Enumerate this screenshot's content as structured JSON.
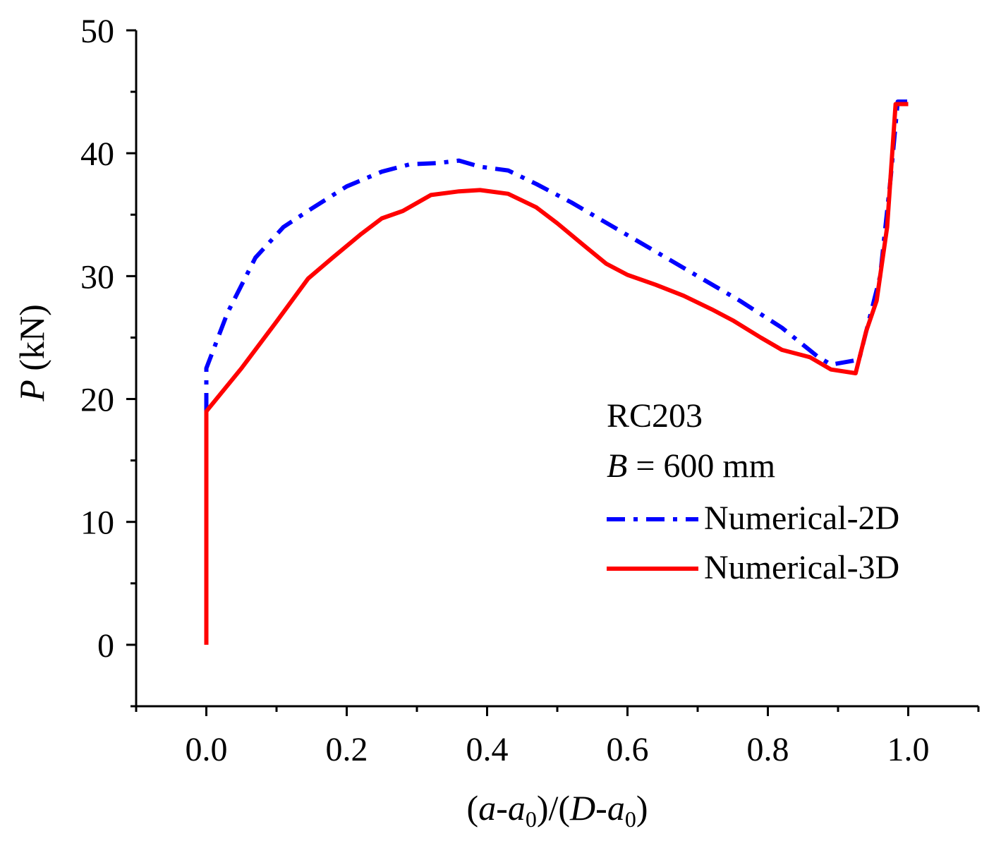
{
  "chart_data": {
    "type": "line",
    "xlabel": {
      "p1": "(",
      "v1": "a",
      "p2": "-",
      "v2": "a",
      "s2": "0",
      "p3": ")/(",
      "v3": "D",
      "p4": "-",
      "v4": "a",
      "s4": "0",
      "p5": ")"
    },
    "ylabel": {
      "var": "P",
      "unit": " (kN)"
    },
    "xlim": [
      -0.1,
      1.1
    ],
    "ylim": [
      -5,
      50
    ],
    "xticks": [
      0.0,
      0.2,
      0.4,
      0.6,
      0.8,
      1.0
    ],
    "xtick_labels": [
      "0.0",
      "0.2",
      "0.4",
      "0.6",
      "0.8",
      "1.0"
    ],
    "yticks": [
      0,
      10,
      20,
      30,
      40,
      50
    ],
    "ytick_labels": [
      "0",
      "10",
      "20",
      "30",
      "40",
      "50"
    ],
    "annotation": {
      "specimen": "RC203",
      "width_var": "B",
      "width_value": " = 600 mm"
    },
    "series": [
      {
        "name": "Numerical-2D",
        "color": "#0000ff",
        "style": "dash-dot",
        "x": [
          0.0,
          0.0,
          0.03,
          0.07,
          0.11,
          0.15,
          0.2,
          0.25,
          0.29,
          0.33,
          0.36,
          0.39,
          0.43,
          0.47,
          0.52,
          0.58,
          0.64,
          0.7,
          0.76,
          0.82,
          0.87,
          0.89,
          0.93,
          0.96,
          0.975,
          0.985,
          1.0
        ],
        "values": [
          19.0,
          22.5,
          27.0,
          31.5,
          34.0,
          35.5,
          37.3,
          38.5,
          39.1,
          39.2,
          39.4,
          38.9,
          38.6,
          37.5,
          36.0,
          34.0,
          32.0,
          30.0,
          28.0,
          25.8,
          23.5,
          22.8,
          23.2,
          30.0,
          38.0,
          44.2,
          44.2
        ]
      },
      {
        "name": "Numerical-3D",
        "color": "#ff0000",
        "style": "solid",
        "x": [
          0.0,
          0.0,
          0.05,
          0.1,
          0.145,
          0.18,
          0.22,
          0.25,
          0.28,
          0.32,
          0.36,
          0.39,
          0.43,
          0.47,
          0.5,
          0.54,
          0.57,
          0.6,
          0.64,
          0.68,
          0.72,
          0.75,
          0.79,
          0.82,
          0.86,
          0.89,
          0.925,
          0.94,
          0.955,
          0.97,
          0.982,
          1.0
        ],
        "values": [
          0.0,
          19.0,
          22.5,
          26.3,
          29.8,
          31.5,
          33.4,
          34.7,
          35.3,
          36.6,
          36.9,
          37.0,
          36.7,
          35.6,
          34.3,
          32.4,
          31.0,
          30.1,
          29.3,
          28.4,
          27.3,
          26.4,
          25.0,
          24.0,
          23.4,
          22.4,
          22.1,
          25.5,
          28.0,
          34.0,
          44.0,
          44.0
        ]
      }
    ]
  }
}
